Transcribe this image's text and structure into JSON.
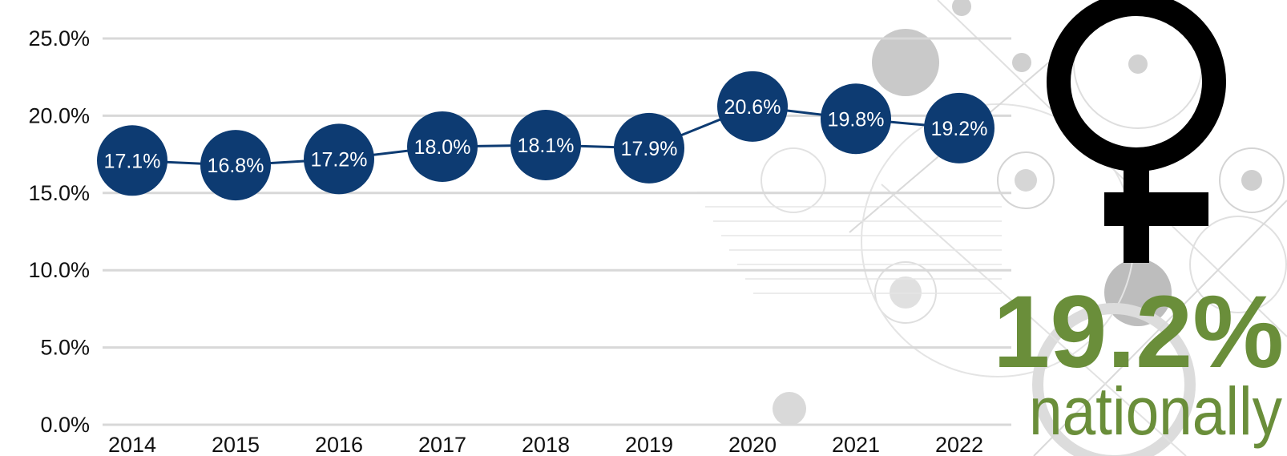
{
  "chart_data": {
    "type": "line",
    "x": [
      "2014",
      "2015",
      "2016",
      "2017",
      "2018",
      "2019",
      "2020",
      "2021",
      "2022"
    ],
    "series": [
      {
        "values": [
          17.1,
          16.8,
          17.2,
          18.0,
          18.1,
          17.9,
          20.6,
          19.8,
          19.2
        ]
      }
    ],
    "point_labels": [
      "17.1%",
      "16.8%",
      "17.2%",
      "18.0%",
      "18.1%",
      "17.9%",
      "20.6%",
      "19.8%",
      "19.2%"
    ],
    "y_ticks": [
      0,
      5,
      10,
      15,
      20,
      25
    ],
    "y_tick_labels": [
      "0.0%",
      "5.0%",
      "10.0%",
      "15.0%",
      "20.0%",
      "25.0%"
    ],
    "ylim": [
      0,
      25
    ],
    "grid": true,
    "marker_color": "#0d3b72",
    "line_color": "#0d3b72",
    "title": "",
    "xlabel": "",
    "ylabel": ""
  },
  "callout": {
    "value": "19.2%",
    "text": "nationally",
    "color": "#6a8e3a",
    "icon": "female-symbol-icon"
  },
  "colors": {
    "grid": "#d8d8d8",
    "decor": "#cfcfcf",
    "icon": "#000000"
  }
}
